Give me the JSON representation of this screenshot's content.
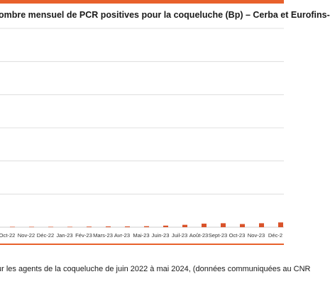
{
  "colors": {
    "accent": "#e8612c",
    "bar": "#d9532a",
    "grid": "#d9d9d9",
    "text": "#1a1a1a"
  },
  "chart_data": {
    "type": "bar",
    "title": "ombre mensuel de PCR positives pour la coqueluche (Bp) – Cerba et Eurofins-",
    "xlabel": "",
    "ylabel": "",
    "grid": true,
    "legend": "none",
    "ylim": [
      0,
      100
    ],
    "categories": [
      "Oct-22",
      "Nov-22",
      "Déc-22",
      "Jan-23",
      "Fév-23",
      "Mars-23",
      "Avr-23",
      "Mai-23",
      "Juin-23",
      "Juil-23",
      "Août-23",
      "Sept-23",
      "Oct-23",
      "Nov-23",
      "Déc-2"
    ],
    "series": [
      {
        "values": [
          0.2,
          0.2,
          0.2,
          0.2,
          0.3,
          0.4,
          0.4,
          0.5,
          0.8,
          1.2,
          1.8,
          2.0,
          1.6,
          2.0,
          2.4
        ]
      }
    ]
  },
  "caption": "ur les agents de la coqueluche de juin 2022 à mai 2024, (données communiquées au CNR"
}
